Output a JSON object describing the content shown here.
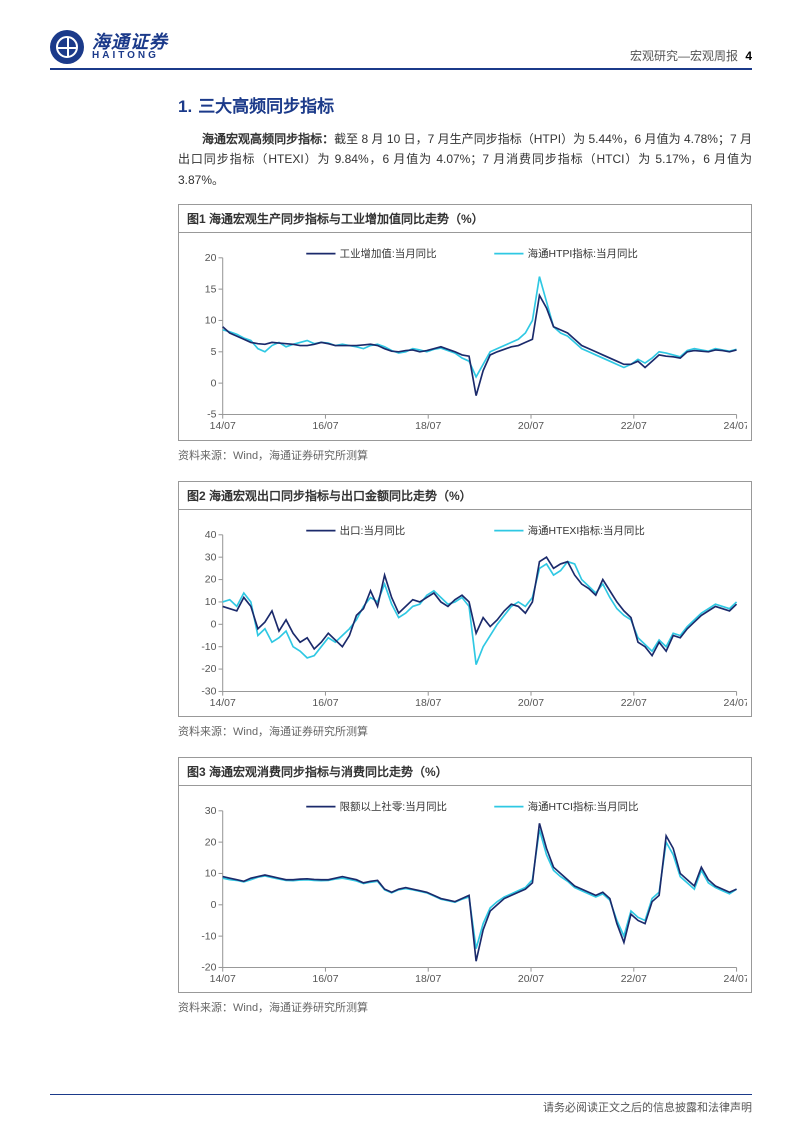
{
  "header": {
    "brand_cn": "海通证券",
    "brand_en": "HAITONG",
    "right_label": "宏观研究—宏观周报",
    "page_no": "4"
  },
  "section": {
    "num": "1.",
    "title": "三大高频同步指标"
  },
  "paragraph": {
    "lead": "海通宏观高频同步指标：",
    "body": "截至 8 月 10 日，7 月生产同步指标（HTPI）为 5.44%，6 月值为 4.78%；7 月出口同步指标（HTEXI）为 9.84%，6 月值为 4.07%；7 月消费同步指标（HTCI）为 5.17%，6 月值为 3.87%。"
  },
  "source": "资料来源：Wind，海通证券研究所测算",
  "footer": "请务必阅读正文之后的信息披露和法律声明",
  "x_ticks": [
    "14/07",
    "16/07",
    "18/07",
    "20/07",
    "22/07",
    "24/07"
  ],
  "chart1": {
    "title": "图1  海通宏观生产同步指标与工业增加值同比走势（%）",
    "legend1": "工业增加值:当月同比",
    "legend2": "海通HTPI指标:当月同比",
    "color1": "#1b2a6b",
    "color2": "#2fc8e3",
    "ylim": [
      -5,
      20
    ],
    "ytick_step": 5,
    "series1": [
      9,
      8,
      7.5,
      7,
      6.5,
      6.3,
      6.2,
      6.5,
      6.4,
      6.3,
      6.2,
      6,
      6,
      6.2,
      6.5,
      6.3,
      6,
      6,
      6,
      6,
      6.1,
      6.2,
      6,
      5.5,
      5.1,
      5,
      5.2,
      5.3,
      5,
      5.2,
      5.5,
      5.8,
      5.4,
      5,
      4.5,
      4.3,
      -2,
      2,
      4.5,
      5,
      5.4,
      5.8,
      6,
      6.5,
      7,
      14,
      12,
      9,
      8.5,
      8,
      7,
      6,
      5.5,
      5,
      4.5,
      4,
      3.5,
      3,
      3,
      3.5,
      2.5,
      3.5,
      4.5,
      4.3,
      4.2,
      4,
      5,
      5.2,
      5.1,
      5,
      5.3,
      5.2,
      5,
      5.3
    ],
    "series2": [
      8.5,
      8.2,
      7.8,
      7.2,
      6.8,
      5.5,
      5,
      6,
      6.5,
      5.8,
      6.2,
      6.5,
      6.8,
      6.3,
      6.5,
      6.4,
      6,
      6.2,
      6,
      5.8,
      5.5,
      6,
      6.2,
      5.8,
      5.2,
      4.8,
      5,
      5.5,
      5.3,
      5,
      5.4,
      5.6,
      5.2,
      4.8,
      4,
      3.5,
      1,
      3,
      5,
      5.5,
      6,
      6.5,
      7,
      8,
      10,
      17,
      13,
      9,
      8,
      7.5,
      6.5,
      5.5,
      5,
      4.5,
      4,
      3.5,
      3,
      2.5,
      3,
      3.8,
      3.2,
      4,
      5,
      4.8,
      4.5,
      4.2,
      5.2,
      5.5,
      5.3,
      5.1,
      5.5,
      5.3,
      5.1,
      5.4
    ]
  },
  "chart2": {
    "title": "图2  海通宏观出口同步指标与出口金额同比走势（%）",
    "legend1": "出口:当月同比",
    "legend2": "海通HTEXI指标:当月同比",
    "color1": "#1b2a6b",
    "color2": "#2fc8e3",
    "ylim": [
      -30,
      40
    ],
    "ytick_step": 10,
    "series1": [
      8,
      7,
      6,
      12,
      8,
      -2,
      1,
      6,
      -3,
      2,
      -4,
      -8,
      -6,
      -11,
      -8,
      -4,
      -7,
      -10,
      -5,
      4,
      7,
      15,
      8,
      22,
      12,
      5,
      8,
      11,
      10,
      12,
      14,
      10,
      8,
      11,
      13,
      10,
      -4,
      3,
      -1,
      2,
      6,
      9,
      8,
      5,
      10,
      28,
      30,
      25,
      27,
      28,
      22,
      18,
      16,
      13,
      20,
      15,
      10,
      6,
      3,
      -8,
      -10,
      -14,
      -8,
      -12,
      -5,
      -6,
      -2,
      1,
      4,
      6,
      8,
      7,
      6,
      9
    ],
    "series2": [
      10,
      11,
      8,
      14,
      10,
      -5,
      -2,
      -8,
      -6,
      -3,
      -10,
      -12,
      -15,
      -14,
      -10,
      -6,
      -8,
      -5,
      -2,
      2,
      8,
      12,
      10,
      18,
      9,
      3,
      5,
      8,
      9,
      13,
      15,
      12,
      9,
      10,
      12,
      8,
      -18,
      -10,
      -5,
      0,
      4,
      8,
      10,
      8,
      12,
      25,
      27,
      22,
      24,
      28,
      27,
      20,
      17,
      14,
      18,
      12,
      7,
      4,
      2,
      -6,
      -9,
      -12,
      -7,
      -10,
      -4,
      -5,
      -1,
      2,
      5,
      7,
      9,
      8,
      7,
      10
    ]
  },
  "chart3": {
    "title": "图3  海通宏观消费同步指标与消费同比走势（%）",
    "legend1": "限额以上社零:当月同比",
    "legend2": "海通HTCI指标:当月同比",
    "color1": "#1b2a6b",
    "color2": "#2fc8e3",
    "ylim": [
      -20,
      30
    ],
    "ytick_step": 10,
    "series1": [
      9,
      8.5,
      8,
      7.5,
      8.5,
      9,
      9.5,
      9,
      8.5,
      8,
      8,
      8.2,
      8.3,
      8.1,
      8,
      8,
      8.5,
      9,
      8.5,
      8,
      7,
      7.5,
      7.8,
      5,
      4,
      5,
      5.5,
      5,
      4.5,
      4,
      3,
      2,
      1.5,
      1,
      2,
      3,
      -18,
      -8,
      -2,
      0,
      2,
      3,
      4,
      5,
      7,
      26,
      18,
      12,
      10,
      8,
      6,
      5,
      4,
      3,
      4,
      2,
      -6,
      -12,
      -3,
      -5,
      -6,
      1,
      3,
      22,
      18,
      10,
      8,
      6,
      12,
      8,
      6,
      5,
      4,
      5
    ],
    "series2": [
      8.5,
      8,
      7.8,
      7.3,
      8,
      8.8,
      9.2,
      8.7,
      8.2,
      7.8,
      7.7,
      7.9,
      8,
      7.8,
      7.7,
      7.8,
      8.2,
      8.5,
      8.1,
      7.6,
      6.8,
      7.2,
      7.5,
      4.8,
      3.8,
      4.8,
      5.2,
      4.8,
      4.3,
      3.8,
      2.8,
      1.8,
      1.3,
      0.8,
      1.8,
      2.5,
      -14,
      -6,
      -1,
      1,
      2.5,
      3.5,
      4.5,
      5.5,
      8,
      24,
      16,
      11,
      9,
      7.5,
      5.5,
      4.5,
      3.5,
      2.5,
      3.5,
      1.5,
      -5,
      -10,
      -2,
      -4,
      -5,
      2,
      4,
      20,
      16,
      9,
      7,
      5,
      11,
      7,
      5.5,
      4.5,
      3.5,
      5
    ]
  }
}
